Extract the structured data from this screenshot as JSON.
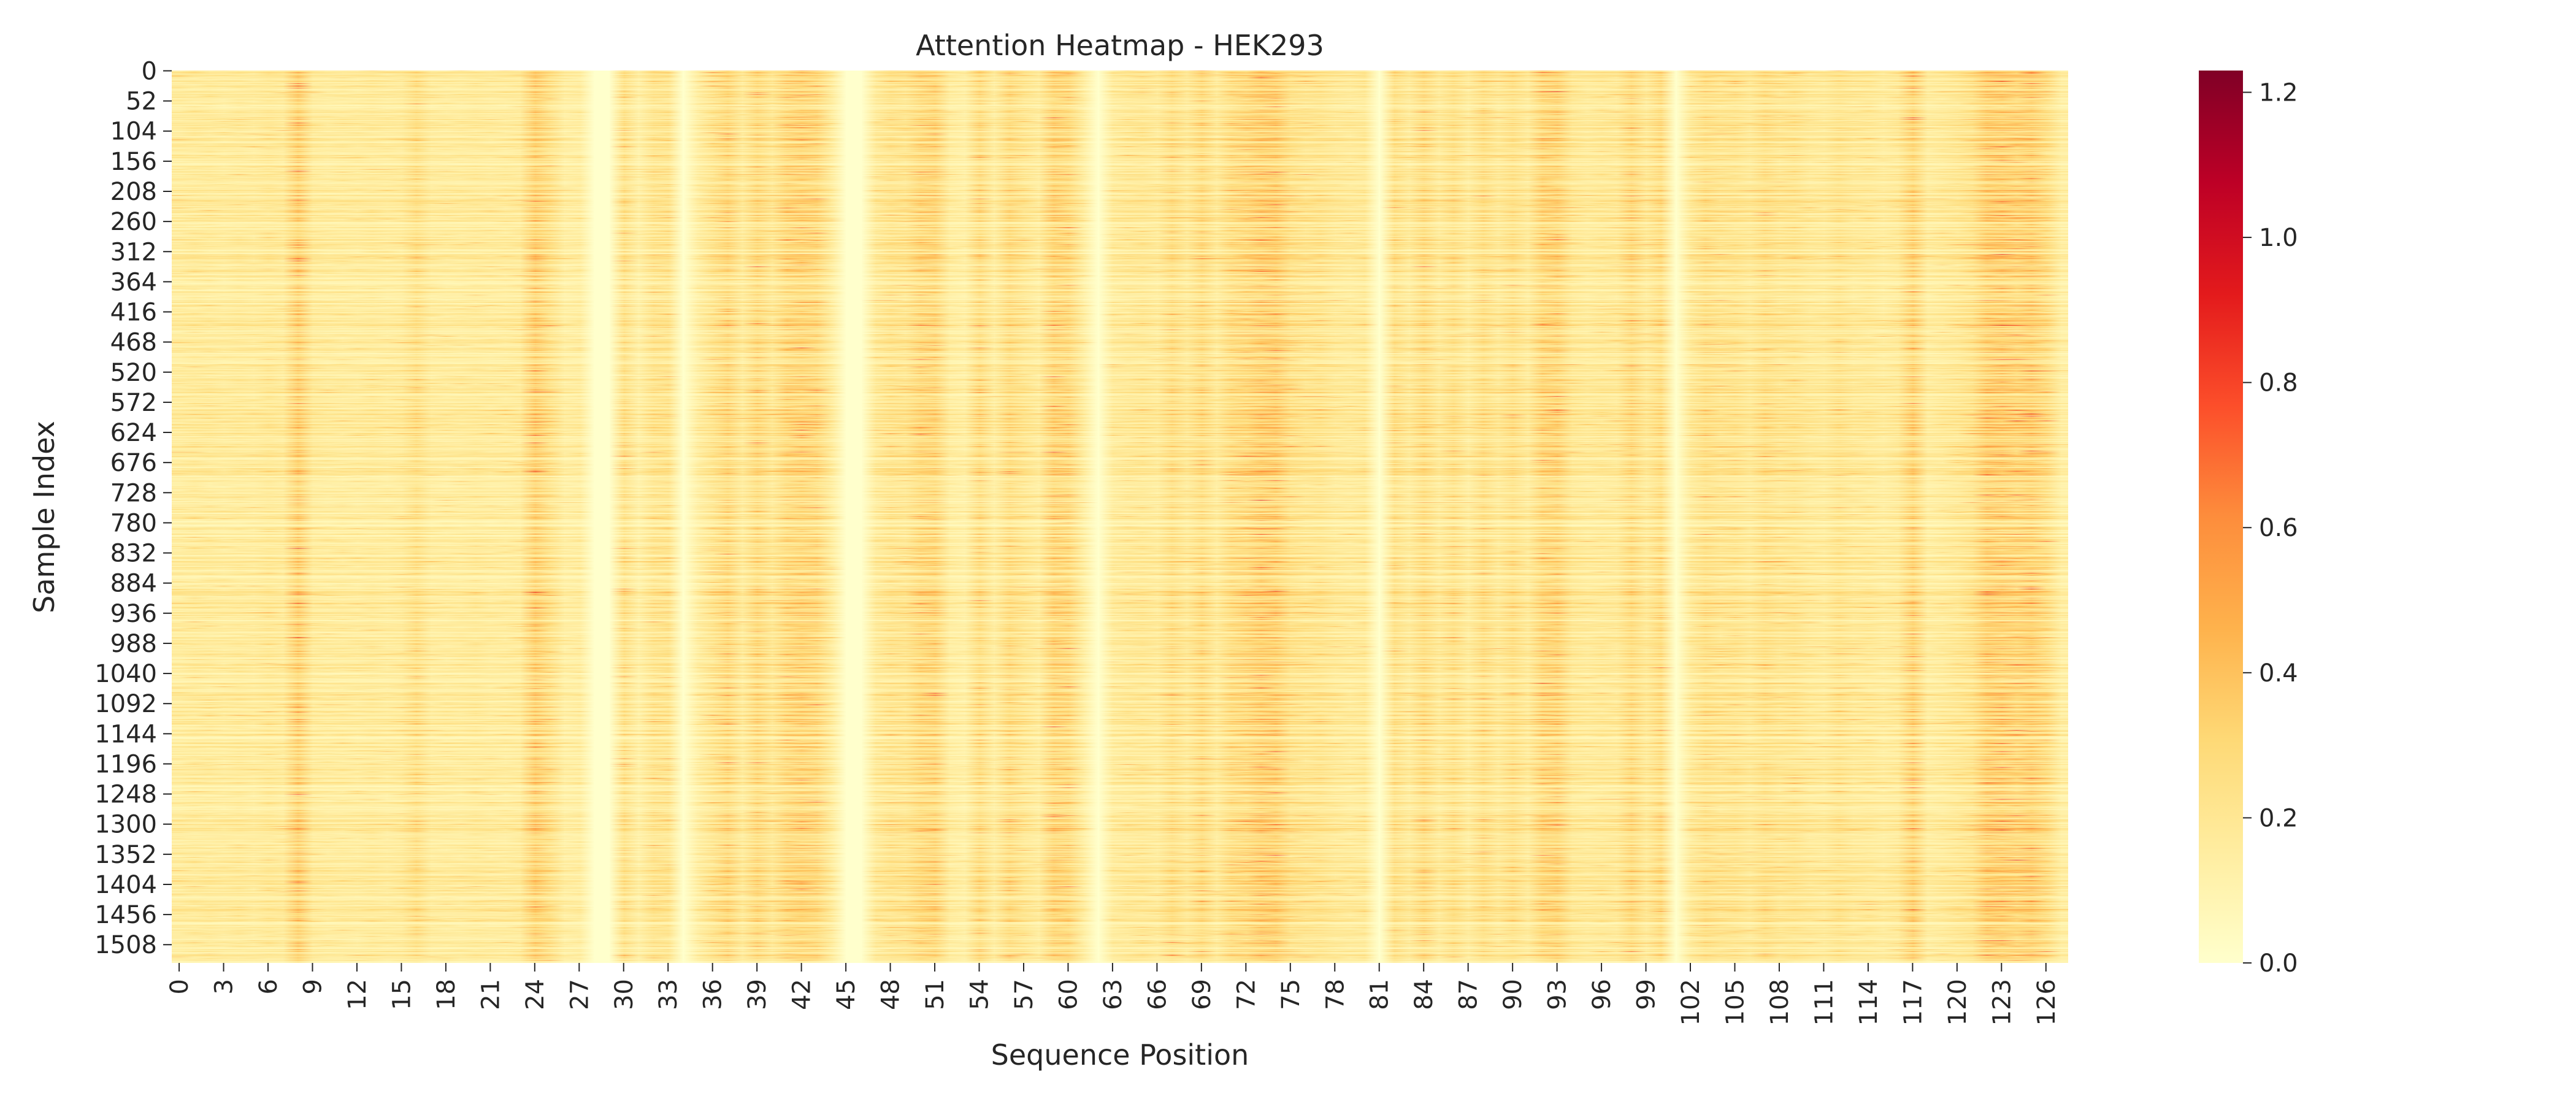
{
  "chart_data": {
    "type": "heatmap",
    "title": "Attention Heatmap - HEK293",
    "xlabel": "Sequence Position",
    "ylabel": "Sample Index",
    "x_count": 128,
    "y_count": 1540,
    "x_tick_labels": [
      "0",
      "3",
      "6",
      "9",
      "12",
      "15",
      "18",
      "21",
      "24",
      "27",
      "30",
      "33",
      "36",
      "39",
      "42",
      "45",
      "48",
      "51",
      "54",
      "57",
      "60",
      "63",
      "66",
      "69",
      "72",
      "75",
      "78",
      "81",
      "84",
      "87",
      "90",
      "93",
      "96",
      "99",
      "102",
      "105",
      "108",
      "111",
      "114",
      "117",
      "120",
      "123",
      "126"
    ],
    "y_tick_labels": [
      "0",
      "52",
      "104",
      "156",
      "208",
      "260",
      "312",
      "364",
      "416",
      "468",
      "520",
      "572",
      "624",
      "676",
      "728",
      "780",
      "832",
      "884",
      "936",
      "988",
      "1040",
      "1092",
      "1144",
      "1196",
      "1248",
      "1300",
      "1352",
      "1404",
      "1456",
      "1508"
    ],
    "colormap": "YlOrRd",
    "colorbar": {
      "min": 0.0,
      "max": 1.23,
      "ticks": [
        "0.0",
        "0.2",
        "0.4",
        "0.6",
        "0.8",
        "1.0",
        "1.2"
      ],
      "colors": [
        "#ffffcc",
        "#ffeda0",
        "#fed976",
        "#feb24c",
        "#fd8d3c",
        "#fc4e2a",
        "#e31a1c",
        "#bd0026",
        "#800026"
      ]
    },
    "zero_columns": [
      28,
      29,
      34,
      45,
      46,
      62,
      81,
      101
    ],
    "column_mean_attention": [
      0.15,
      0.16,
      0.16,
      0.15,
      0.16,
      0.15,
      0.17,
      0.16,
      0.3,
      0.16,
      0.15,
      0.15,
      0.15,
      0.16,
      0.15,
      0.16,
      0.22,
      0.15,
      0.15,
      0.15,
      0.16,
      0.15,
      0.15,
      0.16,
      0.3,
      0.22,
      0.13,
      0.14,
      0.0,
      0.0,
      0.22,
      0.12,
      0.2,
      0.2,
      0.0,
      0.13,
      0.2,
      0.26,
      0.16,
      0.25,
      0.18,
      0.26,
      0.28,
      0.26,
      0.15,
      0.0,
      0.0,
      0.16,
      0.2,
      0.2,
      0.26,
      0.27,
      0.14,
      0.12,
      0.24,
      0.14,
      0.24,
      0.19,
      0.15,
      0.28,
      0.26,
      0.14,
      0.0,
      0.15,
      0.17,
      0.18,
      0.16,
      0.23,
      0.17,
      0.24,
      0.16,
      0.24,
      0.26,
      0.3,
      0.3,
      0.22,
      0.2,
      0.2,
      0.17,
      0.16,
      0.17,
      0.0,
      0.22,
      0.16,
      0.24,
      0.16,
      0.22,
      0.15,
      0.23,
      0.17,
      0.22,
      0.16,
      0.27,
      0.28,
      0.18,
      0.16,
      0.17,
      0.17,
      0.25,
      0.17,
      0.24,
      0.0,
      0.16,
      0.22,
      0.2,
      0.2,
      0.17,
      0.22,
      0.19,
      0.2,
      0.17,
      0.16,
      0.2,
      0.17,
      0.17,
      0.15,
      0.17,
      0.28,
      0.14,
      0.16,
      0.18,
      0.21,
      0.3,
      0.3,
      0.28,
      0.3,
      0.24,
      0.13
    ]
  }
}
